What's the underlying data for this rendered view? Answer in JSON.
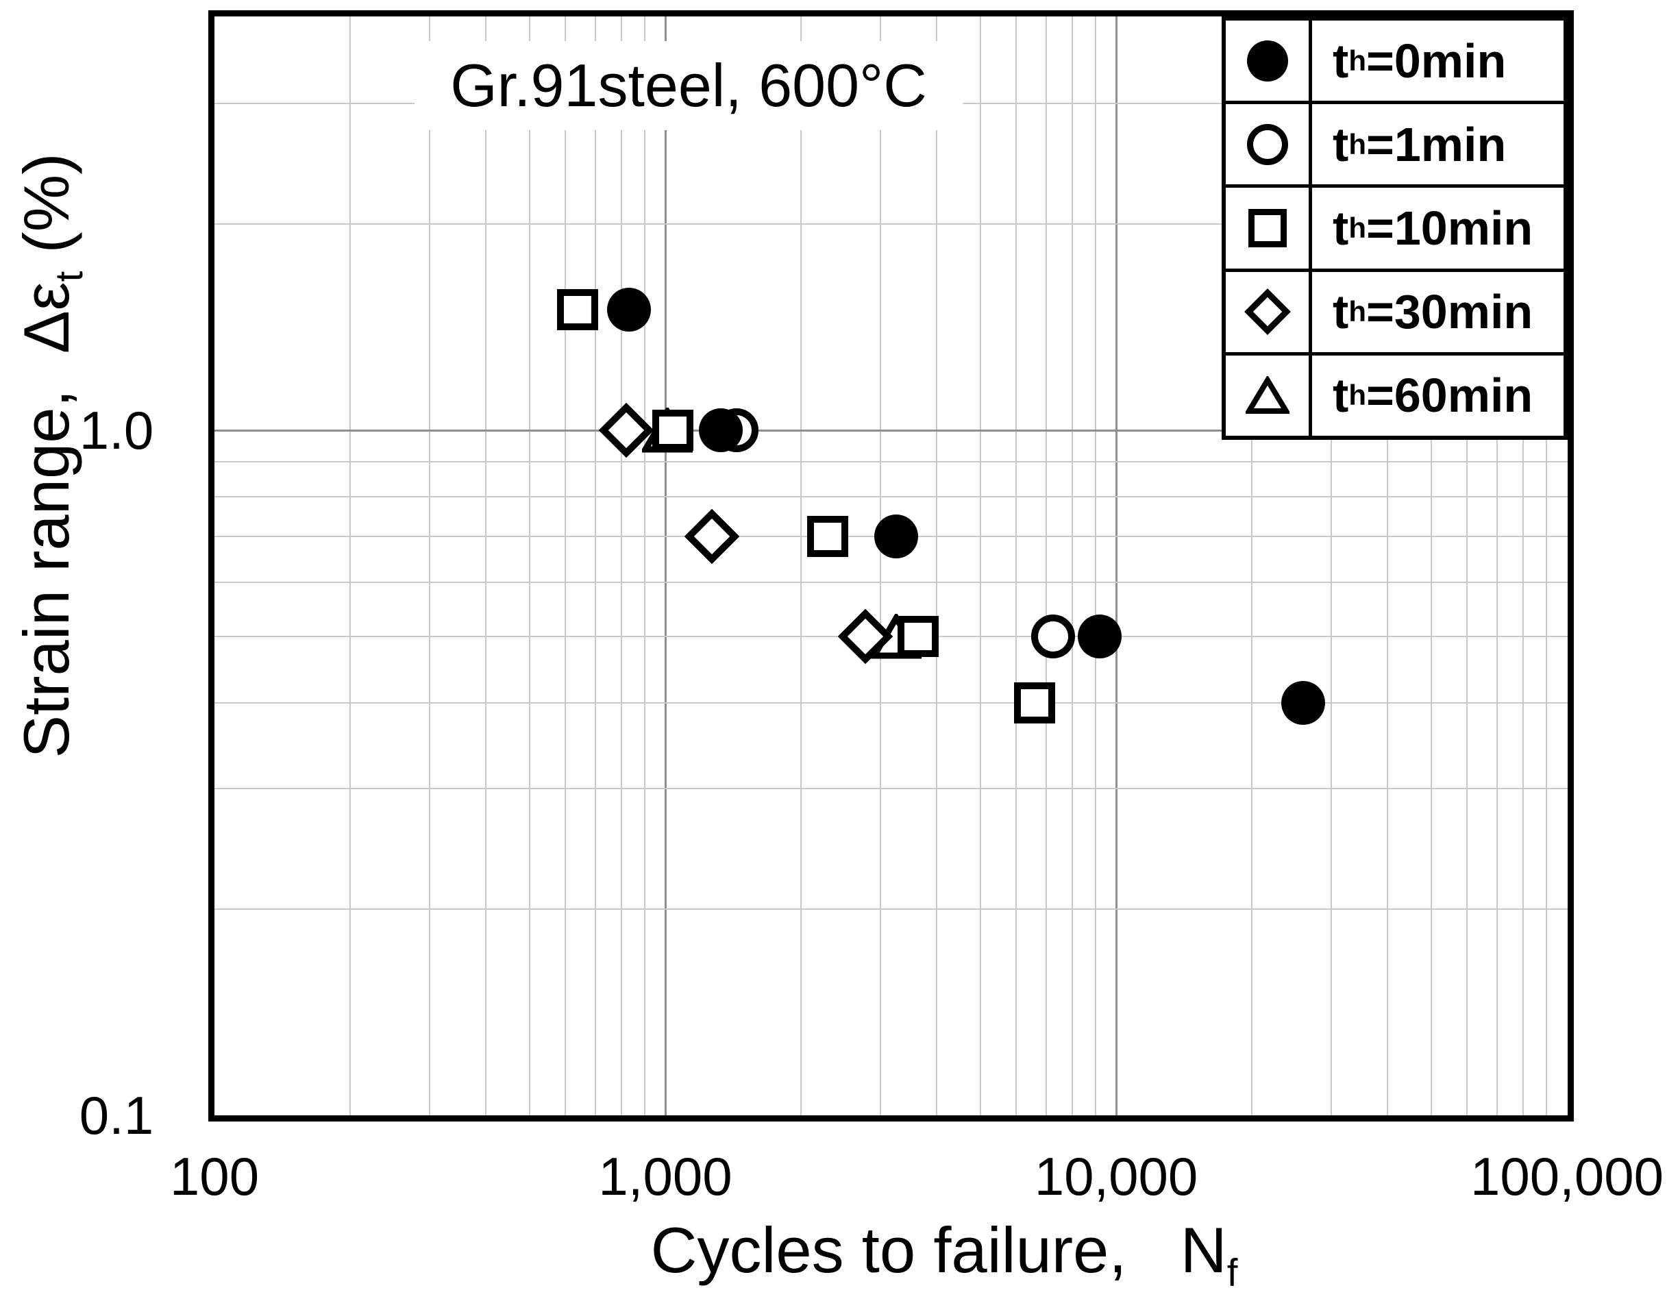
{
  "title": {
    "text": "Gr.91steel, 600°C"
  },
  "axis_titles": {
    "y_parts": [
      {
        "t": "Strain range,  Δε"
      },
      {
        "t": "t",
        "sub": true
      },
      {
        "t": " (%)"
      }
    ],
    "x_parts": [
      {
        "t": "Cycles to failure,   N"
      },
      {
        "t": "f",
        "sub": true
      }
    ]
  },
  "legend": {
    "items": [
      {
        "marker": "filled-circle",
        "label_parts": [
          {
            "t": "t"
          },
          {
            "t": "h",
            "sub": true
          },
          {
            "t": "=0min"
          }
        ]
      },
      {
        "marker": "open-circle",
        "label_parts": [
          {
            "t": "t"
          },
          {
            "t": "h",
            "sub": true
          },
          {
            "t": "=1min"
          }
        ]
      },
      {
        "marker": "open-square",
        "label_parts": [
          {
            "t": "t"
          },
          {
            "t": "h",
            "sub": true
          },
          {
            "t": "=10min"
          }
        ]
      },
      {
        "marker": "open-diamond",
        "label_parts": [
          {
            "t": "t"
          },
          {
            "t": "h",
            "sub": true
          },
          {
            "t": "=30min"
          }
        ]
      },
      {
        "marker": "open-triangle",
        "label_parts": [
          {
            "t": "t"
          },
          {
            "t": "h",
            "sub": true
          },
          {
            "t": "=60min"
          }
        ]
      }
    ]
  },
  "chart_data": {
    "type": "scatter",
    "title": "Gr.91steel, 600°C",
    "xlabel": "Cycles to failure, Nf",
    "ylabel": "Strain range, Δεt (%)",
    "legend_position": "top-right",
    "grid": true,
    "x_axis": {
      "scale": "log",
      "min": 100,
      "max": 100000,
      "tick_labels": [
        {
          "v": 100,
          "label": "100"
        },
        {
          "v": 1000,
          "label": "1,000"
        },
        {
          "v": 10000,
          "label": "10,000"
        },
        {
          "v": 100000,
          "label": "100,000"
        }
      ],
      "major_gridlines": [
        1000,
        10000
      ],
      "minor_gridlines": [
        200,
        300,
        400,
        500,
        600,
        700,
        800,
        900,
        2000,
        3000,
        4000,
        5000,
        6000,
        7000,
        8000,
        9000,
        20000,
        30000,
        40000,
        50000,
        60000,
        70000,
        80000,
        90000
      ]
    },
    "y_axis": {
      "scale": "log",
      "min": 0.1,
      "max": 4.0,
      "tick_labels": [
        {
          "v": 1.0,
          "label": "1.0"
        },
        {
          "v": 0.1,
          "label": "0.1"
        }
      ],
      "major_gridlines": [
        1.0
      ],
      "minor_gridlines": [
        0.2,
        0.3,
        0.4,
        0.5,
        0.6,
        0.7,
        0.8,
        0.9,
        2,
        3
      ]
    },
    "series": [
      {
        "name": "th=0min",
        "marker": "filled-circle",
        "points": [
          [
            830,
            1.5
          ],
          [
            1330,
            1.0
          ],
          [
            3250,
            0.7
          ],
          [
            9200,
            0.5
          ],
          [
            26000,
            0.4
          ]
        ]
      },
      {
        "name": "th=1min",
        "marker": "open-circle",
        "points": [
          [
            1440,
            1.0
          ],
          [
            7250,
            0.5
          ]
        ]
      },
      {
        "name": "th=10min",
        "marker": "open-square",
        "points": [
          [
            640,
            1.5
          ],
          [
            1040,
            1.0
          ],
          [
            2290,
            0.7
          ],
          [
            3640,
            0.5
          ],
          [
            6600,
            0.4
          ]
        ]
      },
      {
        "name": "th=30min",
        "marker": "open-diamond",
        "points": [
          [
            820,
            1.0
          ],
          [
            1270,
            0.7
          ],
          [
            2780,
            0.5
          ]
        ]
      },
      {
        "name": "th=60min",
        "marker": "open-triangle",
        "points": [
          [
            1010,
            1.0
          ],
          [
            3250,
            0.5
          ]
        ]
      }
    ]
  }
}
